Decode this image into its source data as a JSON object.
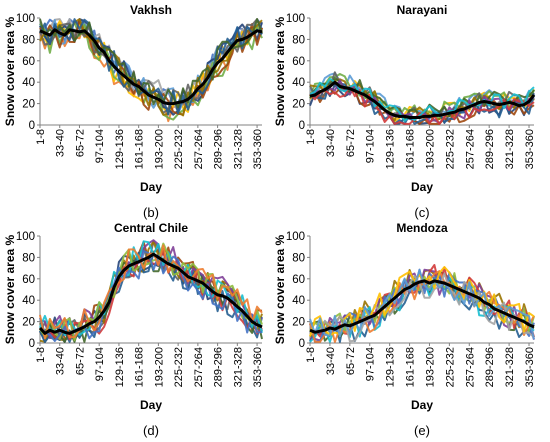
{
  "figure": {
    "palette": [
      "#4472C4",
      "#ED7D31",
      "#A5A5A5",
      "#FFC000",
      "#5B9BD5",
      "#70AD47",
      "#264478",
      "#9E480E",
      "#636363",
      "#997300",
      "#255E91",
      "#43682B",
      "#7F3F98",
      "#D23A3A",
      "#17BECF",
      "#8FBC3F"
    ],
    "mean_color": "#000000"
  },
  "chart_data": [
    {
      "type": "line",
      "panel_label": "(b)",
      "title": "Vakhsh",
      "xlabel": "Day",
      "ylabel": "Snow cover area %",
      "ylim": [
        0,
        100
      ],
      "yticks": [
        0,
        20,
        40,
        60,
        80,
        100
      ],
      "x_ticklabels": [
        "1-8",
        "33-40",
        "65-72",
        "97-104",
        "129-136",
        "161-168",
        "193-200",
        "225-232",
        "257-264",
        "289-296",
        "321-328",
        "353-360"
      ],
      "n_years": 12,
      "series_count": 46,
      "series": [
        {
          "name": "mean",
          "values": [
            88,
            86,
            84,
            89,
            86,
            84,
            89,
            88,
            87,
            88,
            84,
            79,
            72,
            68,
            60,
            55,
            50,
            46,
            42,
            38,
            36,
            32,
            28,
            26,
            24,
            21,
            20,
            20,
            21,
            22,
            24,
            28,
            34,
            38,
            44,
            52,
            58,
            62,
            68,
            74,
            79,
            80,
            82,
            85,
            88,
            87
          ]
        }
      ]
    },
    {
      "type": "line",
      "panel_label": "(c)",
      "title": "Narayani",
      "xlabel": "Day",
      "ylabel": "Snow cover area %",
      "ylim": [
        0,
        100
      ],
      "yticks": [
        0,
        20,
        40,
        60,
        80,
        100
      ],
      "x_ticklabels": [
        "1-8",
        "33-40",
        "65-72",
        "97-104",
        "129-136",
        "161-168",
        "193-200",
        "225-232",
        "257-264",
        "289-296",
        "321-328",
        "353-360"
      ],
      "n_years": 12,
      "series_count": 46,
      "series": [
        {
          "name": "mean",
          "values": [
            27,
            28,
            31,
            33,
            36,
            40,
            36,
            35,
            34,
            32,
            30,
            28,
            25,
            22,
            18,
            14,
            11,
            9,
            8,
            8,
            7,
            7,
            7,
            8,
            8,
            9,
            9,
            10,
            11,
            12,
            14,
            15,
            17,
            19,
            21,
            22,
            21,
            20,
            19,
            20,
            21,
            20,
            18,
            19,
            22,
            28
          ]
        }
      ]
    },
    {
      "type": "line",
      "panel_label": "(d)",
      "title": "Central Chile",
      "xlabel": "Day",
      "ylabel": "Snow cover area %",
      "ylim": [
        0,
        100
      ],
      "yticks": [
        0,
        20,
        40,
        60,
        80,
        100
      ],
      "x_ticklabels": [
        "1-8",
        "33-40",
        "65-72",
        "97-104",
        "129-136",
        "161-168",
        "193-200",
        "225-232",
        "257-264",
        "289-296",
        "321-328",
        "353-360"
      ],
      "n_years": 12,
      "series_count": 46,
      "series": [
        {
          "name": "mean",
          "values": [
            14,
            9,
            12,
            10,
            12,
            10,
            9,
            11,
            13,
            15,
            18,
            20,
            24,
            30,
            38,
            52,
            62,
            68,
            72,
            74,
            76,
            78,
            80,
            83,
            80,
            77,
            74,
            72,
            70,
            66,
            62,
            60,
            58,
            56,
            52,
            48,
            45,
            44,
            42,
            38,
            34,
            30,
            25,
            20,
            17,
            15
          ]
        }
      ]
    },
    {
      "type": "line",
      "panel_label": "(e)",
      "title": "Mendoza",
      "xlabel": "Day",
      "ylabel": "Snow cover area %",
      "ylim": [
        0,
        100
      ],
      "yticks": [
        0,
        20,
        40,
        60,
        80,
        100
      ],
      "x_ticklabels": [
        "1-8",
        "33-40",
        "65-72",
        "97-104",
        "129-136",
        "161-168",
        "193-200",
        "225-232",
        "257-264",
        "289-296",
        "321-328",
        "353-360"
      ],
      "n_years": 12,
      "series_count": 46,
      "series": [
        {
          "name": "mean",
          "values": [
            12,
            10,
            11,
            12,
            14,
            13,
            15,
            17,
            16,
            18,
            20,
            22,
            24,
            26,
            30,
            34,
            38,
            42,
            46,
            50,
            52,
            55,
            57,
            58,
            56,
            58,
            57,
            56,
            54,
            52,
            50,
            48,
            46,
            44,
            42,
            38,
            36,
            32,
            30,
            28,
            26,
            24,
            22,
            20,
            17,
            15
          ]
        }
      ]
    }
  ]
}
